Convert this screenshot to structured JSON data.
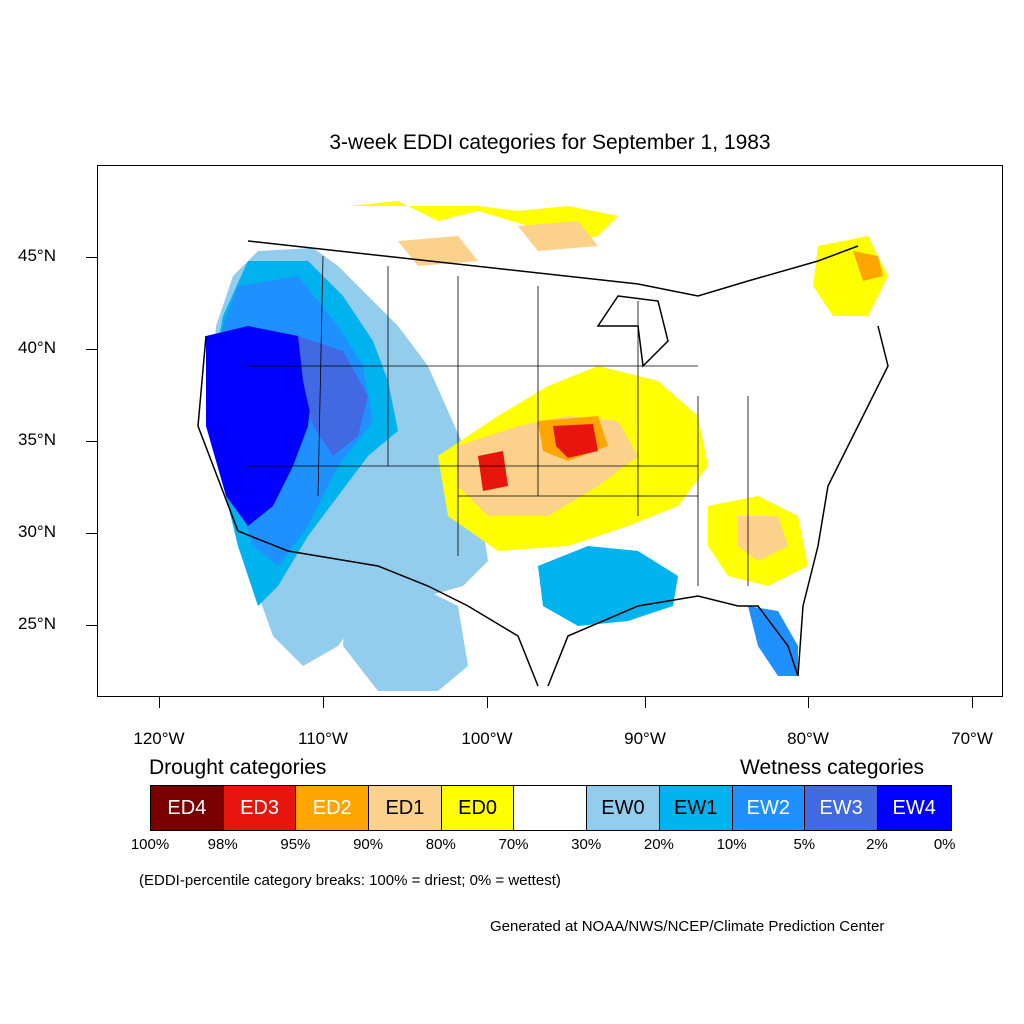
{
  "title": "3-week EDDI categories for September 1, 1983",
  "lat_labels": [
    "45°N",
    "40°N",
    "35°N",
    "30°N",
    "25°N"
  ],
  "lon_labels": [
    "120°W",
    "110°W",
    "100°W",
    "90°W",
    "80°W",
    "70°W"
  ],
  "legend": {
    "drought_heading": "Drought categories",
    "wetness_heading": "Wetness categories",
    "categories": [
      {
        "label": "ED4",
        "color": "#7a0000",
        "text_color": "#ffffff"
      },
      {
        "label": "ED3",
        "color": "#e8140e",
        "text_color": "#ffffff"
      },
      {
        "label": "ED2",
        "color": "#ffa500",
        "text_color": "#ffffff"
      },
      {
        "label": "ED1",
        "color": "#fcd18c",
        "text_color": "#000000"
      },
      {
        "label": "ED0",
        "color": "#ffff00",
        "text_color": "#000000"
      },
      {
        "label": "",
        "color": "#ffffff",
        "text_color": "#000000"
      },
      {
        "label": "EW0",
        "color": "#93cdee",
        "text_color": "#000000"
      },
      {
        "label": "EW1",
        "color": "#00b2ee",
        "text_color": "#000000"
      },
      {
        "label": "EW2",
        "color": "#1e90ff",
        "text_color": "#ffffff"
      },
      {
        "label": "EW3",
        "color": "#4169e1",
        "text_color": "#ffffff"
      },
      {
        "label": "EW4",
        "color": "#0000ff",
        "text_color": "#ffffff"
      }
    ],
    "percentiles": [
      "100%",
      "98%",
      "95%",
      "90%",
      "80%",
      "70%",
      "30%",
      "20%",
      "10%",
      "5%",
      "2%",
      "0%"
    ]
  },
  "note": "(EDDI-percentile category breaks: 100% = driest; 0% = wettest)",
  "credit": "Generated at NOAA/NWS/NCEP/Climate Prediction Center"
}
